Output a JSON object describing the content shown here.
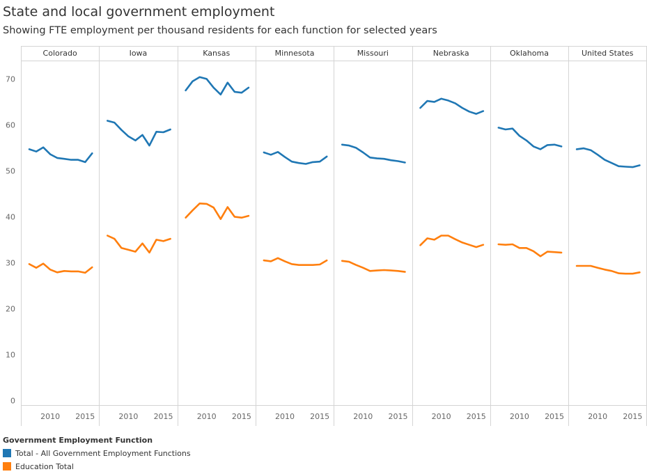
{
  "title": "State and local government employment",
  "subtitle": "Showing FTE employment per thousand residents  for each function for selected years",
  "legend": {
    "title": "Government Employment Function",
    "items": [
      {
        "label": "Total - All Government Employment Functions",
        "color": "#1f77b4"
      },
      {
        "label": "Education Total",
        "color": "#ff7f0e"
      }
    ]
  },
  "chart_data": {
    "type": "line",
    "years": [
      2007,
      2008,
      2009,
      2010,
      2011,
      2012,
      2013,
      2014,
      2015,
      2016
    ],
    "x_ticks": [
      "2010",
      "2015"
    ],
    "y_ticks": [
      0,
      10,
      20,
      30,
      40,
      50,
      60,
      70
    ],
    "ylim": [
      -1,
      74
    ],
    "grid": false,
    "legend_position": "bottom-left",
    "panels": [
      {
        "name": "Colorado",
        "series": [
          {
            "name": "Total - All Government Employment Functions",
            "color": "#1f77b4",
            "values": [
              54.7,
              54.2,
              55.1,
              53.6,
              52.8,
              52.6,
              52.4,
              52.4,
              51.9,
              53.8
            ]
          },
          {
            "name": "Education Total",
            "color": "#ff7f0e",
            "values": [
              29.7,
              28.9,
              29.8,
              28.5,
              27.9,
              28.2,
              28.1,
              28.1,
              27.8,
              29.0
            ]
          }
        ]
      },
      {
        "name": "Iowa",
        "series": [
          {
            "name": "Total - All Government Employment Functions",
            "color": "#1f77b4",
            "values": [
              60.9,
              60.5,
              58.9,
              57.5,
              56.6,
              57.8,
              55.5,
              58.5,
              58.4,
              59.0
            ]
          },
          {
            "name": "Education Total",
            "color": "#ff7f0e",
            "values": [
              35.9,
              35.2,
              33.2,
              32.8,
              32.4,
              34.2,
              32.2,
              35.0,
              34.7,
              35.2
            ]
          }
        ]
      },
      {
        "name": "Kansas",
        "series": [
          {
            "name": "Total - All Government Employment Functions",
            "color": "#1f77b4",
            "values": [
              67.5,
              69.5,
              70.4,
              70.0,
              68.1,
              66.6,
              69.2,
              67.2,
              67.0,
              68.1
            ]
          },
          {
            "name": "Education Total",
            "color": "#ff7f0e",
            "values": [
              39.8,
              41.4,
              42.9,
              42.8,
              42.0,
              39.5,
              42.1,
              40.0,
              39.8,
              40.2
            ]
          }
        ]
      },
      {
        "name": "Minnesota",
        "series": [
          {
            "name": "Total - All Government Employment Functions",
            "color": "#1f77b4",
            "values": [
              54.0,
              53.5,
              54.1,
              53.0,
              52.0,
              51.7,
              51.5,
              51.9,
              52.0,
              53.1
            ]
          },
          {
            "name": "Education Total",
            "color": "#ff7f0e",
            "values": [
              30.5,
              30.3,
              31.0,
              30.3,
              29.7,
              29.5,
              29.5,
              29.5,
              29.6,
              30.5
            ]
          }
        ]
      },
      {
        "name": "Missouri",
        "series": [
          {
            "name": "Total - All Government Employment Functions",
            "color": "#1f77b4",
            "values": [
              55.7,
              55.5,
              55.0,
              54.0,
              52.9,
              52.7,
              52.6,
              52.3,
              52.1,
              51.8
            ]
          },
          {
            "name": "Education Total",
            "color": "#ff7f0e",
            "values": [
              30.4,
              30.2,
              29.5,
              28.9,
              28.2,
              28.3,
              28.4,
              28.3,
              28.2,
              28.0
            ]
          }
        ]
      },
      {
        "name": "Nebraska",
        "series": [
          {
            "name": "Total - All Government Employment Functions",
            "color": "#1f77b4",
            "values": [
              63.7,
              65.2,
              65.0,
              65.7,
              65.3,
              64.7,
              63.7,
              62.9,
              62.4,
              63.0
            ]
          },
          {
            "name": "Education Total",
            "color": "#ff7f0e",
            "values": [
              33.8,
              35.3,
              35.0,
              35.9,
              35.9,
              35.1,
              34.4,
              33.9,
              33.4,
              33.9
            ]
          }
        ]
      },
      {
        "name": "Oklahoma",
        "series": [
          {
            "name": "Total - All Government Employment Functions",
            "color": "#1f77b4",
            "values": [
              59.4,
              59.0,
              59.2,
              57.6,
              56.6,
              55.3,
              54.7,
              55.6,
              55.7,
              55.3
            ]
          },
          {
            "name": "Education Total",
            "color": "#ff7f0e",
            "values": [
              34.0,
              33.9,
              34.0,
              33.2,
              33.2,
              32.5,
              31.4,
              32.4,
              32.3,
              32.2
            ]
          }
        ]
      },
      {
        "name": "United States",
        "series": [
          {
            "name": "Total - All Government Employment Functions",
            "color": "#1f77b4",
            "values": [
              54.7,
              54.9,
              54.5,
              53.5,
              52.4,
              51.7,
              51.0,
              50.9,
              50.8,
              51.2
            ]
          },
          {
            "name": "Education Total",
            "color": "#ff7f0e",
            "values": [
              29.3,
              29.3,
              29.3,
              28.9,
              28.5,
              28.2,
              27.7,
              27.6,
              27.6,
              27.9
            ]
          }
        ]
      }
    ]
  }
}
